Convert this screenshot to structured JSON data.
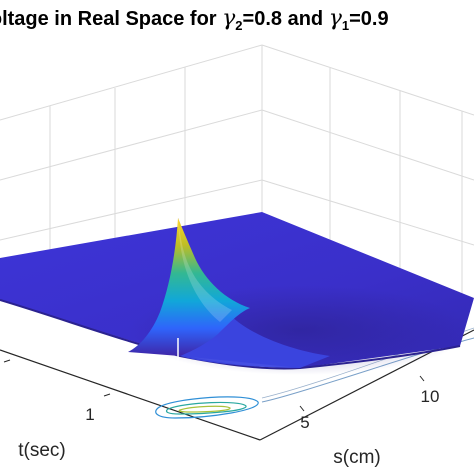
{
  "chart_data": {
    "type": "surface",
    "title_parts": {
      "prefix": "Voltage in Real Space for ",
      "symbol_a": "γ",
      "sub_a": "2",
      "val_a": "=0.8 and ",
      "symbol_b": "γ",
      "sub_b": "1",
      "val_b": "=0.9"
    },
    "xlabel": "s(cm)",
    "ylabel": "t(sec)",
    "x_ticks": [
      "5",
      "10"
    ],
    "y_ticks": [
      "1"
    ],
    "peak": {
      "s": 2.5,
      "t": 0.5
    },
    "colormap": [
      "#3e26a8",
      "#2f64fb",
      "#11a7d9",
      "#33b893",
      "#bdbd26",
      "#fdd729"
    ],
    "grid": true
  }
}
